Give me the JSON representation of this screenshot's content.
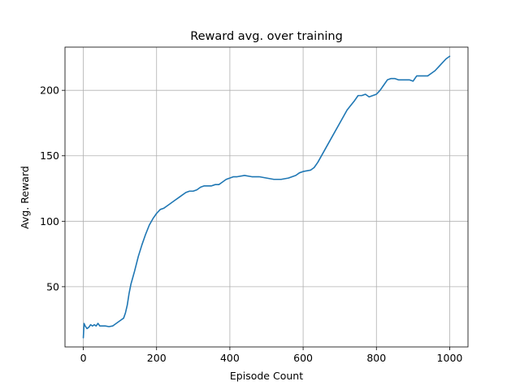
{
  "chart_data": {
    "type": "line",
    "title": "Reward avg. over training",
    "xlabel": "Episode Count",
    "ylabel": "Avg. Reward",
    "xlim": [
      -50,
      1050
    ],
    "ylim": [
      4,
      233
    ],
    "xticks": [
      0,
      200,
      400,
      600,
      800,
      1000
    ],
    "yticks": [
      50,
      100,
      150,
      200
    ],
    "grid": true,
    "series": [
      {
        "color": "#1f77b4",
        "x": [
          0,
          2,
          5,
          10,
          15,
          20,
          25,
          30,
          35,
          40,
          45,
          50,
          60,
          70,
          80,
          90,
          100,
          110,
          115,
          120,
          125,
          130,
          135,
          140,
          150,
          160,
          170,
          180,
          190,
          200,
          210,
          220,
          230,
          240,
          250,
          260,
          270,
          280,
          290,
          300,
          310,
          320,
          330,
          340,
          350,
          360,
          370,
          380,
          390,
          400,
          410,
          420,
          440,
          460,
          480,
          500,
          520,
          540,
          560,
          570,
          580,
          590,
          600,
          620,
          630,
          640,
          660,
          680,
          700,
          720,
          740,
          750,
          760,
          770,
          780,
          790,
          800,
          810,
          820,
          830,
          840,
          850,
          860,
          870,
          880,
          890,
          900,
          910,
          920,
          930,
          940,
          950,
          960,
          970,
          980,
          990,
          1000
        ],
        "values": [
          11,
          22,
          20,
          18,
          19,
          21,
          20,
          21,
          20,
          22,
          20,
          20,
          20,
          19.5,
          20,
          22,
          24,
          26,
          30,
          36,
          45,
          52,
          57,
          62,
          73,
          82,
          90,
          97,
          102,
          106,
          109,
          110,
          112,
          114,
          116,
          118,
          120,
          122,
          123,
          123,
          124,
          126,
          127,
          127,
          127,
          128,
          128,
          130,
          132,
          133,
          134,
          134,
          135,
          134,
          134,
          133,
          132,
          132,
          133,
          134,
          135,
          137,
          138,
          139,
          141,
          145,
          155,
          165,
          175,
          185,
          192,
          196,
          196,
          197,
          195,
          196,
          197,
          200,
          204,
          208,
          209,
          209,
          208,
          208,
          208,
          208,
          207,
          211,
          211,
          211,
          211,
          213,
          215,
          218,
          221,
          224,
          226
        ]
      }
    ]
  }
}
